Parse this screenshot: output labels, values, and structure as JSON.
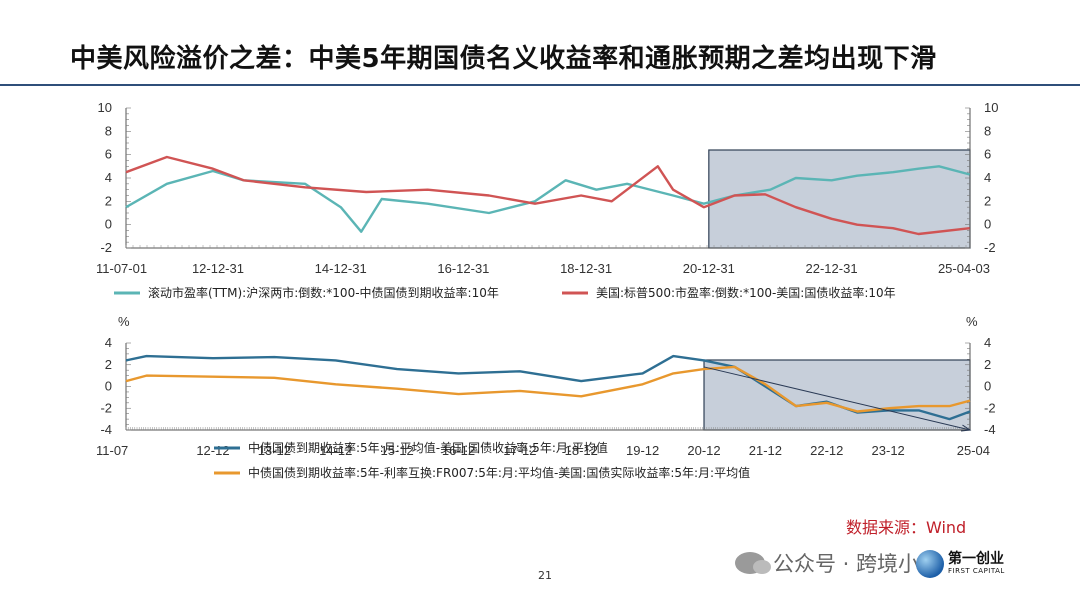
{
  "title": "中美风险溢价之差：中美5年期国债名义收益率和通胀预期之差均出现下滑",
  "source": "数据来源：Wind",
  "page_number": "21",
  "watermark": "公众号 · 跨境小猫",
  "logo": {
    "cn": "第一创业",
    "en": "FIRST CAPITAL"
  },
  "chart_data": [
    {
      "type": "line",
      "y_ticks": [
        "10",
        "8",
        "6",
        "4",
        "2",
        "0",
        "-2"
      ],
      "ylim": [
        -2,
        10
      ],
      "x_ticks": [
        "11-07-01",
        "12-12-31",
        "14-12-31",
        "16-12-31",
        "18-12-31",
        "20-12-31",
        "22-12-31",
        "25-04-03"
      ],
      "xlim": [
        "2011-07-01",
        "2025-04-03"
      ],
      "highlight_range": [
        "2020-12-31",
        "2025-04-03"
      ],
      "series": [
        {
          "name": "滚动市盈率(TTM):沪深两市:倒数:*100-中债国债到期收益率:10年",
          "color": "#5bb5b5",
          "x": [
            "2011-07",
            "2012-03",
            "2012-12",
            "2013-06",
            "2014-06",
            "2015-01",
            "2015-05",
            "2015-09",
            "2016-06",
            "2017-06",
            "2018-03",
            "2018-09",
            "2019-03",
            "2019-09",
            "2020-06",
            "2020-12",
            "2021-06",
            "2022-01",
            "2022-06",
            "2023-01",
            "2023-06",
            "2024-01",
            "2024-06",
            "2024-10",
            "2025-04"
          ],
          "y": [
            1.5,
            3.5,
            4.6,
            3.8,
            3.5,
            1.5,
            -0.6,
            2.2,
            1.8,
            1.0,
            2.0,
            3.8,
            3.0,
            3.5,
            2.5,
            1.8,
            2.5,
            3.0,
            4.0,
            3.8,
            4.2,
            4.5,
            4.8,
            5.0,
            4.3
          ]
        },
        {
          "name": "美国:标普500:市盈率:倒数:*100-美国:国债收益率:10年",
          "color": "#d05454",
          "x": [
            "2011-07",
            "2012-03",
            "2012-12",
            "2013-06",
            "2014-06",
            "2015-06",
            "2016-06",
            "2017-06",
            "2018-03",
            "2018-12",
            "2019-06",
            "2020-03",
            "2020-06",
            "2020-12",
            "2021-06",
            "2021-12",
            "2022-06",
            "2023-01",
            "2023-06",
            "2024-01",
            "2024-06",
            "2025-04"
          ],
          "y": [
            4.5,
            5.8,
            4.8,
            3.8,
            3.2,
            2.8,
            3.0,
            2.5,
            1.8,
            2.5,
            2.0,
            5.0,
            3.0,
            1.5,
            2.5,
            2.6,
            1.5,
            0.5,
            0.0,
            -0.3,
            -0.8,
            -0.3
          ]
        }
      ]
    },
    {
      "type": "line",
      "unit": "%",
      "y_ticks": [
        "4",
        "2",
        "0",
        "-2",
        "-4"
      ],
      "ylim": [
        -4,
        4
      ],
      "x_ticks": [
        "11-07",
        "12-12",
        "13-12",
        "14-12",
        "15-12",
        "16-12",
        "17-12",
        "18-12",
        "19-12",
        "20-12",
        "21-12",
        "22-12",
        "23-12",
        "25-04"
      ],
      "xlim": [
        "2011-07",
        "2025-04"
      ],
      "highlight_range": [
        "2020-12",
        "2025-04"
      ],
      "trend_arrow": {
        "from": [
          "2020-12",
          1.8
        ],
        "to": [
          "2025-04",
          -4.0
        ]
      },
      "series": [
        {
          "name": "中债国债到期收益率:5年:月:平均值-美国:国债收益率:5年:月:平均值",
          "color": "#2e6f93",
          "x": [
            "2011-07",
            "2011-11",
            "2012-12",
            "2013-12",
            "2014-12",
            "2015-12",
            "2016-12",
            "2017-12",
            "2018-12",
            "2019-12",
            "2020-06",
            "2020-12",
            "2021-06",
            "2021-12",
            "2022-06",
            "2022-12",
            "2023-06",
            "2023-12",
            "2024-06",
            "2024-12",
            "2025-04"
          ],
          "y": [
            2.4,
            2.8,
            2.6,
            2.7,
            2.4,
            1.6,
            1.2,
            1.4,
            0.5,
            1.2,
            2.8,
            2.4,
            1.8,
            0.0,
            -1.8,
            -1.4,
            -2.4,
            -2.2,
            -2.2,
            -3.0,
            -2.3
          ]
        },
        {
          "name": "中债国债到期收益率:5年-利率互换:FR007:5年:月:平均值-美国:国债实际收益率:5年:月:平均值",
          "color": "#e8982e",
          "x": [
            "2011-07",
            "2011-11",
            "2012-12",
            "2013-12",
            "2014-12",
            "2015-12",
            "2016-12",
            "2017-12",
            "2018-12",
            "2019-12",
            "2020-06",
            "2020-12",
            "2021-06",
            "2021-12",
            "2022-06",
            "2022-12",
            "2023-06",
            "2023-12",
            "2024-06",
            "2024-12",
            "2025-04"
          ],
          "y": [
            0.5,
            1.0,
            0.9,
            0.8,
            0.2,
            -0.2,
            -0.7,
            -0.4,
            -0.9,
            0.2,
            1.2,
            1.6,
            1.8,
            0.2,
            -1.8,
            -1.5,
            -2.3,
            -2.0,
            -1.8,
            -1.8,
            -1.3
          ]
        }
      ]
    }
  ]
}
